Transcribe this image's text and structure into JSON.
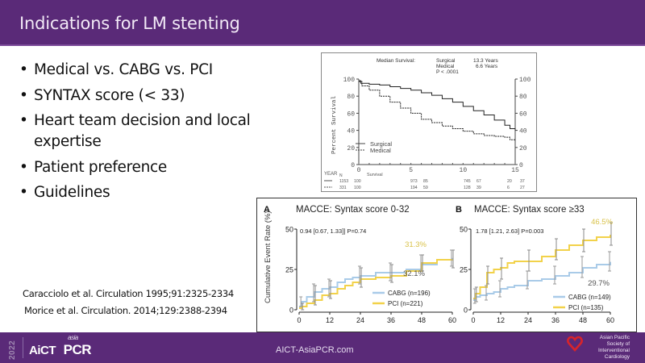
{
  "header": {
    "title": "Indications for LM stenting"
  },
  "bullets": [
    "Medical vs. CABG vs. PCI",
    "SYNTAX score (< 33)",
    "Heart team decision and local expertise",
    "Patient preference",
    "Guidelines"
  ],
  "references": [
    "Caracciolo et al. Circulation 1995;91:2325-2334",
    "Morice et al. Circulation. 2014;129:2388-2394"
  ],
  "footer": {
    "year": "2022",
    "logo_aict": "AiCT",
    "logo_asia": "asia",
    "logo_pcr": "PCR",
    "website": "AICT-AsiaPCR.com",
    "society": [
      "Asian Pacific",
      "Society of",
      "Interventional",
      "Cardiology"
    ]
  },
  "colors": {
    "brand_purple": "#5a2a78",
    "cabg_blue": "#a9cbe8",
    "pci_yellow": "#f2d24a",
    "label_yellow": "#d9c24a"
  },
  "chart_data": [
    {
      "type": "line",
      "title": "Median Survival: Surgical 13.3 Years; Medical 6.6 Years; P < .0001",
      "annotation": {
        "header": "Median Survival:",
        "rows": [
          [
            "Surgical",
            "13.3 Years"
          ],
          [
            "Medical",
            "6.6 Years"
          ]
        ],
        "pvalue": "P < .0001"
      },
      "xlabel": "YEAR",
      "ylabel": "Percent Survival",
      "xlim": [
        0,
        15
      ],
      "ylim": [
        0,
        100
      ],
      "xticks": [
        0,
        5,
        10,
        15
      ],
      "yticks": [
        0,
        20,
        40,
        60,
        80,
        100
      ],
      "legend": {
        "position": "bottom-left",
        "entries": [
          "Surgical",
          "Medical"
        ]
      },
      "series": [
        {
          "name": "Surgical",
          "style": "solid",
          "x": [
            0,
            0.2,
            1,
            2,
            3,
            4,
            5,
            6,
            7,
            8,
            9,
            10,
            11,
            12,
            13,
            14,
            14.5,
            15
          ],
          "y": [
            98,
            95,
            94,
            93,
            91,
            89,
            87,
            84,
            81,
            77,
            73,
            68,
            63,
            58,
            52,
            46,
            42,
            40
          ]
        },
        {
          "name": "Medical",
          "style": "dashed",
          "x": [
            0,
            0.3,
            1,
            2,
            3,
            4,
            5,
            6,
            7,
            8,
            9,
            10,
            11,
            12,
            13,
            14,
            14.5,
            15
          ],
          "y": [
            97,
            92,
            87,
            80,
            73,
            66,
            60,
            53,
            49,
            45,
            42,
            39,
            36,
            34,
            33,
            32,
            29,
            28
          ]
        }
      ],
      "risk_table": {
        "header_n": "N",
        "header_survival": "Survival",
        "rows": [
          {
            "name": "Surgical",
            "values": [
              "1153",
              "100",
              "973",
              "85",
              "745",
              "67",
              "20",
              "37"
            ]
          },
          {
            "name": "Medical",
            "values": [
              "331",
              "100",
              "194",
              "59",
              "128",
              "39",
              "6",
              "27"
            ]
          }
        ]
      }
    },
    {
      "type": "line",
      "panel": "A",
      "title": "MACCE: Syntax score 0-32",
      "ylabel": "Cumulative Event Rate (%)",
      "xlabel": "",
      "xlim": [
        0,
        60
      ],
      "ylim": [
        0,
        50
      ],
      "xticks": [
        0,
        12,
        24,
        36,
        48,
        60
      ],
      "yticks": [
        0,
        25,
        50
      ],
      "stat": "0.94 [0.67, 1.33]] P=0.74",
      "end_labels": {
        "PCI": "31.3%",
        "CABG": "32.1%"
      },
      "legend": {
        "position": "bottom-right",
        "entries": [
          "CABG (n=196)",
          "PCI (n=221)"
        ]
      },
      "series": [
        {
          "name": "CABG (n=196)",
          "x": [
            0,
            1,
            3,
            6,
            9,
            12,
            15,
            18,
            21,
            24,
            30,
            36,
            42,
            48,
            54,
            60
          ],
          "y": [
            2,
            5,
            8,
            11,
            13,
            14,
            17,
            19,
            20,
            21,
            23,
            23,
            25,
            28,
            31,
            32.1
          ],
          "err_x": [
            1,
            6,
            12,
            24,
            36,
            48,
            60
          ],
          "err_lo": [
            2,
            5,
            8,
            16,
            18,
            24,
            27
          ],
          "err_hi": [
            8,
            16,
            19,
            27,
            29,
            34,
            37
          ]
        },
        {
          "name": "PCI (n=221)",
          "x": [
            0,
            1,
            3,
            6,
            9,
            12,
            15,
            18,
            21,
            24,
            30,
            36,
            42,
            48,
            54,
            60
          ],
          "y": [
            1,
            2,
            4,
            6,
            9,
            10,
            13,
            15,
            17,
            19,
            20,
            21,
            24,
            29,
            31,
            31.3
          ],
          "err_x": [
            1,
            6,
            12,
            24,
            36,
            48,
            60
          ],
          "err_lo": [
            0,
            3,
            7,
            14,
            17,
            24,
            26
          ],
          "err_hi": [
            4,
            15,
            18,
            26,
            28,
            34,
            37
          ]
        }
      ]
    },
    {
      "type": "line",
      "panel": "B",
      "title": "MACCE: Syntax score ≥33",
      "ylabel": "",
      "xlabel": "",
      "xlim": [
        0,
        60
      ],
      "ylim": [
        0,
        50
      ],
      "xticks": [
        0,
        12,
        24,
        36,
        48,
        60
      ],
      "yticks": [
        0,
        25,
        50
      ],
      "stat": "1.78 [1.21, 2.63] P=0.003",
      "end_labels": {
        "PCI": "46.5%",
        "CABG": "29.7%"
      },
      "legend": {
        "position": "bottom-right",
        "entries": [
          "CABG (n=149)",
          "PCI (n=135)"
        ]
      },
      "series": [
        {
          "name": "CABG (n=149)",
          "x": [
            0,
            1,
            3,
            6,
            9,
            12,
            15,
            18,
            24,
            30,
            36,
            42,
            48,
            54,
            60
          ],
          "y": [
            6,
            8,
            9,
            10,
            11,
            13,
            14,
            15,
            18,
            19,
            21,
            23,
            26,
            28,
            29.7
          ],
          "err_x": [
            1,
            6,
            12,
            24,
            36,
            48,
            60
          ],
          "err_lo": [
            4,
            6,
            8,
            13,
            16,
            20,
            24
          ],
          "err_hi": [
            13,
            15,
            18,
            24,
            27,
            33,
            36
          ]
        },
        {
          "name": "PCI (n=135)",
          "x": [
            0,
            1,
            3,
            6,
            9,
            12,
            15,
            18,
            24,
            30,
            36,
            42,
            48,
            54,
            60
          ],
          "y": [
            7,
            10,
            14,
            23,
            25,
            26,
            29,
            30,
            30,
            33,
            37,
            40,
            43,
            45,
            46.5
          ],
          "err_x": [
            1,
            6,
            12,
            24,
            36,
            48,
            60
          ],
          "err_lo": [
            5,
            16,
            19,
            24,
            31,
            36,
            40
          ],
          "err_hi": [
            14,
            27,
            32,
            37,
            44,
            50,
            54
          ]
        }
      ]
    }
  ]
}
